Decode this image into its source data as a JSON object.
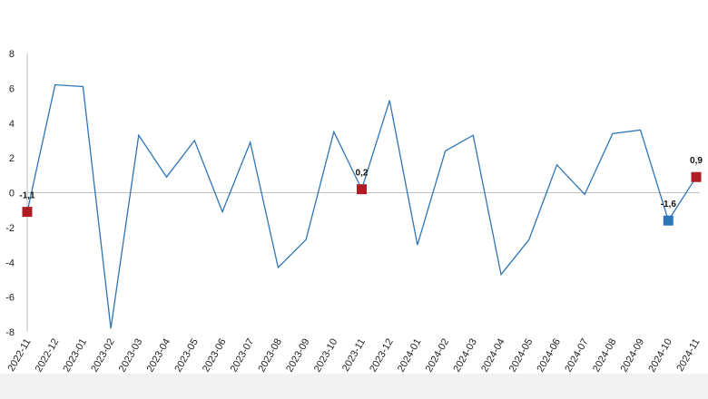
{
  "chart_data": {
    "type": "line",
    "title": "",
    "xlabel": "",
    "ylabel": "",
    "ylim": [
      -8,
      8
    ],
    "yticks": [
      8,
      6,
      4,
      2,
      0,
      -2,
      -4,
      -6,
      -8
    ],
    "ytick_labels": [
      "8",
      "6",
      "4",
      "2",
      "0",
      "-2",
      "-4",
      "-6",
      "-8"
    ],
    "grid": false,
    "legend": "none",
    "line_color": "#2e75b6",
    "categories": [
      "2022-11",
      "2022-12",
      "2023-01",
      "2023-02",
      "2023-03",
      "2023-04",
      "2023-05",
      "2023-06",
      "2023-07",
      "2023-08",
      "2023-09",
      "2023-10",
      "2023-11",
      "2023-12",
      "2024-01",
      "2024-02",
      "2024-03",
      "2024-04",
      "2024-05",
      "2024-06",
      "2024-07",
      "2024-08",
      "2024-09",
      "2024-10",
      "2024-11"
    ],
    "series": [
      {
        "values": [
          -1.1,
          6.2,
          6.1,
          -7.8,
          3.3,
          0.9,
          3.0,
          -1.1,
          2.9,
          -4.3,
          -2.7,
          3.5,
          0.2,
          5.3,
          -3.0,
          2.4,
          3.3,
          -4.7,
          -2.7,
          1.6,
          -0.1,
          3.4,
          3.6,
          -1.6,
          0.9
        ]
      }
    ],
    "highlighted_points": [
      {
        "index": 0,
        "label": "-1,1",
        "color": "#b01c24"
      },
      {
        "index": 12,
        "label": "0,2",
        "color": "#b01c24"
      },
      {
        "index": 23,
        "label": "-1,6",
        "color": "#2e75b6"
      },
      {
        "index": 24,
        "label": "0,9",
        "color": "#b01c24"
      }
    ]
  }
}
